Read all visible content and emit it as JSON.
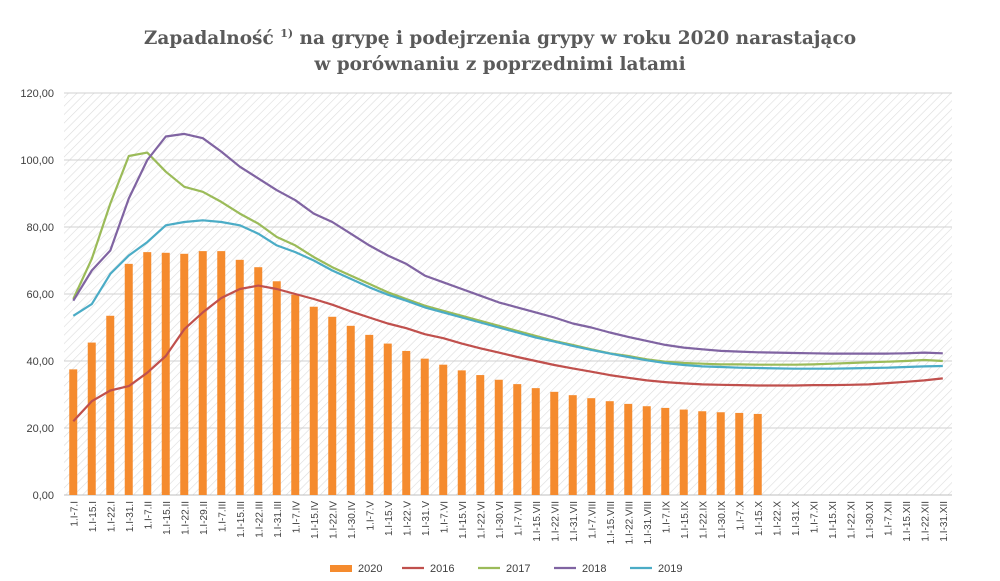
{
  "chart_data": {
    "type": "bar+line",
    "title_part1": "Zapadalność",
    "title_superscript": "1)",
    "title_part2": " na grypę i podejrzenia grypy w roku 2020 narastająco",
    "title_line2": "w porównaniu z poprzednimi latami",
    "ylim": [
      0,
      120
    ],
    "yticks": [
      "0,00",
      "20,00",
      "40,00",
      "60,00",
      "80,00",
      "100,00",
      "120,00"
    ],
    "grid": true,
    "legend_position": "bottom",
    "categories": [
      "1.I-7.I",
      "1.I-15.I",
      "1.I-22.I",
      "1.I-31.I",
      "1.I-7.II",
      "1.I-15.II",
      "1.I-22.II",
      "1.I-29.II",
      "1.I-7.III",
      "1.I-15.III",
      "1.I-22.III",
      "1.I-31.III",
      "1.I-7.IV",
      "1.I-15.IV",
      "1.I-22.IV",
      "1.I-30.IV",
      "1.I-7.V",
      "1.I-15.V",
      "1.I-22.V",
      "1.I-31.V",
      "1.I-7.VI",
      "1.I-15.VI",
      "1.I-22.VI",
      "1.I-30.VI",
      "1.I-7.VII",
      "1.I-15.VII",
      "1.I-22.VII",
      "1.I-31.VII",
      "1.I-7.VIII",
      "1.I-15.VIII",
      "1.I-22.VIII",
      "1.I-31.VIII",
      "1.I-7.IX",
      "1.I-15.IX",
      "1.I-22.IX",
      "1.I-30.IX",
      "1.I-7.X",
      "1.I-15.X",
      "1.I-22.X",
      "1.I-31.X",
      "1.I-7.XI",
      "1.I-15.XI",
      "1.I-22.XI",
      "1.I-30.XI",
      "1.I-7.XII",
      "1.I-15.XII",
      "1.I-22.XII",
      "1.I-31.XII"
    ],
    "bar_series": {
      "name": "2020",
      "color": "#f58b2e",
      "values": [
        37.5,
        45.5,
        53.5,
        69.0,
        72.5,
        72.3,
        72.0,
        72.8,
        72.8,
        70.2,
        68.0,
        63.8,
        59.8,
        56.2,
        53.2,
        50.5,
        47.8,
        45.2,
        43.0,
        40.7,
        38.9,
        37.2,
        35.8,
        34.4,
        33.1,
        31.9,
        30.8,
        29.8,
        28.9,
        28.0,
        27.2,
        26.5,
        26.0,
        25.5,
        25.0,
        24.7,
        24.5,
        24.2
      ]
    },
    "line_series": [
      {
        "name": "2016",
        "color": "#c0504d",
        "values": [
          22.0,
          28.0,
          31.2,
          32.5,
          36.5,
          41.5,
          49.5,
          54.5,
          58.8,
          61.5,
          62.5,
          61.5,
          60.0,
          58.5,
          56.8,
          54.8,
          53.0,
          51.2,
          49.8,
          48.0,
          46.8,
          45.2,
          43.8,
          42.5,
          41.2,
          40.0,
          38.8,
          37.8,
          36.8,
          35.8,
          35.0,
          34.2,
          33.7,
          33.3,
          33.0,
          32.9,
          32.8,
          32.7,
          32.7,
          32.7,
          32.8,
          32.8,
          32.9,
          33.0,
          33.4,
          33.8,
          34.2,
          34.8
        ]
      },
      {
        "name": "2017",
        "color": "#9bbb59",
        "values": [
          58.5,
          70.5,
          87.0,
          101.2,
          102.2,
          96.5,
          92.0,
          90.5,
          87.5,
          84.0,
          81.0,
          77.0,
          74.5,
          71.0,
          68.0,
          65.5,
          63.0,
          60.5,
          58.5,
          56.5,
          55.0,
          53.5,
          52.0,
          50.5,
          49.0,
          47.5,
          46.0,
          44.8,
          43.5,
          42.3,
          41.5,
          40.5,
          39.8,
          39.4,
          39.2,
          39.0,
          39.0,
          38.9,
          38.9,
          38.9,
          39.0,
          39.2,
          39.4,
          39.6,
          39.8,
          40.0,
          40.3,
          40.0
        ]
      },
      {
        "name": "2018",
        "color": "#8064a2",
        "values": [
          58.0,
          67.0,
          73.0,
          88.5,
          100.0,
          107.0,
          107.8,
          106.5,
          102.5,
          98.0,
          94.5,
          91.0,
          88.0,
          84.0,
          81.5,
          78.0,
          74.5,
          71.5,
          69.0,
          65.5,
          63.5,
          61.5,
          59.5,
          57.5,
          56.0,
          54.5,
          53.0,
          51.2,
          50.0,
          48.5,
          47.2,
          46.0,
          44.8,
          44.0,
          43.5,
          43.0,
          42.8,
          42.6,
          42.5,
          42.4,
          42.3,
          42.2,
          42.2,
          42.2,
          42.2,
          42.3,
          42.5,
          42.3
        ]
      },
      {
        "name": "2019",
        "color": "#4bacc6",
        "values": [
          53.5,
          57.0,
          66.0,
          71.5,
          75.5,
          80.5,
          81.5,
          82.0,
          81.5,
          80.5,
          78.0,
          74.5,
          72.5,
          70.0,
          67.0,
          64.5,
          62.0,
          59.8,
          58.0,
          56.0,
          54.5,
          53.0,
          51.5,
          50.0,
          48.5,
          47.0,
          45.8,
          44.5,
          43.3,
          42.2,
          41.2,
          40.2,
          39.4,
          38.8,
          38.4,
          38.2,
          38.0,
          37.9,
          37.8,
          37.7,
          37.7,
          37.7,
          37.8,
          37.9,
          38.0,
          38.2,
          38.4,
          38.5
        ]
      }
    ]
  }
}
